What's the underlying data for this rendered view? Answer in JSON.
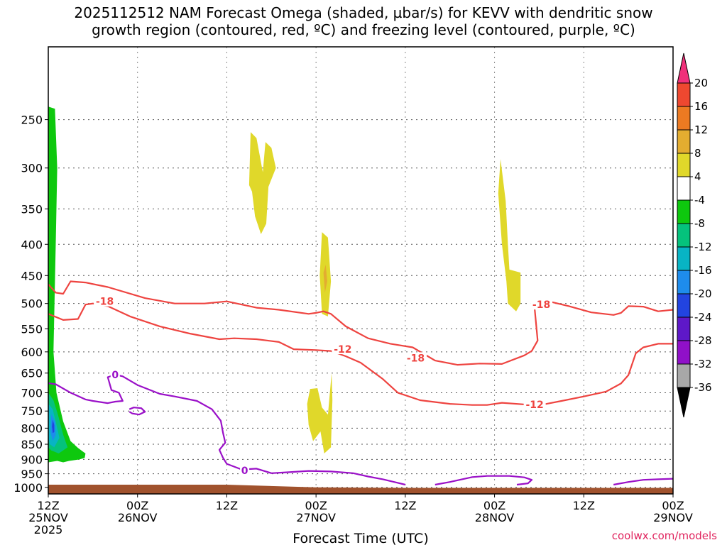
{
  "chart_data": {
    "type": "time-height contour",
    "title": "2025112512 NAM Forecast Omega (shaded, µbar/s) for KEVV with dendritic snow\ngrowth region (contoured, red, ºC) and freezing level (contoured, purple, ºC)",
    "xlabel": "Forecast Time (UTC)",
    "x_ticks": [
      {
        "hour": 0,
        "line1": "12Z",
        "line2": "25NOV",
        "line3": "2025"
      },
      {
        "hour": 12,
        "line1": "00Z",
        "line2": "26NOV",
        "line3": ""
      },
      {
        "hour": 24,
        "line1": "12Z",
        "line2": "",
        "line3": ""
      },
      {
        "hour": 36,
        "line1": "00Z",
        "line2": "27NOV",
        "line3": ""
      },
      {
        "hour": 48,
        "line1": "12Z",
        "line2": "",
        "line3": ""
      },
      {
        "hour": 60,
        "line1": "00Z",
        "line2": "28NOV",
        "line3": ""
      },
      {
        "hour": 72,
        "line1": "12Z",
        "line2": "",
        "line3": ""
      },
      {
        "hour": 84,
        "line1": "00Z",
        "line2": "29NOV",
        "line3": ""
      }
    ],
    "xlim": [
      0,
      84
    ],
    "y_ticks": [
      250,
      300,
      350,
      400,
      450,
      500,
      550,
      600,
      650,
      700,
      750,
      800,
      850,
      900,
      950,
      1000
    ],
    "ylim": [
      1025,
      190
    ],
    "y_scale": "log",
    "grid": true,
    "colorbar": {
      "labels": [
        "20",
        "16",
        "12",
        "8",
        "4",
        "-4",
        "-8",
        "-12",
        "-16",
        "-20",
        "-24",
        "-28",
        "-32",
        "-36"
      ],
      "colors": [
        "#f0307a",
        "#ee4830",
        "#ec7a22",
        "#e3ad30",
        "#e0d82a",
        "#ffffff",
        "#0ec80e",
        "#05c27c",
        "#08b4c4",
        "#1e8cec",
        "#2244e0",
        "#5e18c8",
        "#9010c8",
        "#a8a8a8",
        "#000000"
      ]
    },
    "shaded_regions": [
      {
        "level": "-8",
        "color": "#0ec80e",
        "points": [
          [
            0,
            238
          ],
          [
            0.9,
            240
          ],
          [
            1.2,
            300
          ],
          [
            1.0,
            400
          ],
          [
            0.7,
            600
          ],
          [
            1.1,
            700
          ],
          [
            2.0,
            780
          ],
          [
            3.0,
            840
          ],
          [
            4.0,
            862
          ],
          [
            5.0,
            880
          ],
          [
            4.9,
            895
          ],
          [
            4.2,
            900
          ],
          [
            2.8,
            905
          ],
          [
            2.0,
            910
          ],
          [
            1.2,
            905
          ],
          [
            0,
            910
          ]
        ]
      },
      {
        "level": "-12",
        "color": "#05c27c",
        "points": [
          [
            0,
            700
          ],
          [
            0.7,
            720
          ],
          [
            1.3,
            760
          ],
          [
            2.0,
            820
          ],
          [
            2.6,
            860
          ],
          [
            1.4,
            880
          ],
          [
            0.4,
            870
          ],
          [
            0,
            860
          ]
        ]
      },
      {
        "level": "-16",
        "color": "#08b4c4",
        "points": [
          [
            0,
            730
          ],
          [
            0.6,
            745
          ],
          [
            1.1,
            790
          ],
          [
            1.5,
            830
          ],
          [
            0.8,
            860
          ],
          [
            0.2,
            850
          ],
          [
            0,
            830
          ]
        ]
      },
      {
        "level": "-20",
        "color": "#1e8cec",
        "points": [
          [
            0.4,
            760
          ],
          [
            0.9,
            780
          ],
          [
            1.0,
            820
          ],
          [
            0.6,
            840
          ],
          [
            0.3,
            810
          ]
        ]
      },
      {
        "level": "-24",
        "color": "#2244e0",
        "points": [
          [
            0.6,
            775
          ],
          [
            0.8,
            790
          ],
          [
            0.8,
            812
          ],
          [
            0.6,
            815
          ],
          [
            0.5,
            795
          ]
        ]
      },
      {
        "level": "4",
        "color": "#e0d82a",
        "points": [
          [
            27.2,
            262
          ],
          [
            28.0,
            268
          ],
          [
            29.0,
            312
          ],
          [
            28.6,
            330
          ],
          [
            29.2,
            272
          ],
          [
            30.0,
            278
          ],
          [
            30.6,
            300
          ],
          [
            29.6,
            322
          ],
          [
            29.3,
            370
          ],
          [
            28.6,
            385
          ],
          [
            27.8,
            360
          ],
          [
            27.4,
            328
          ],
          [
            27.0,
            320
          ]
        ]
      },
      {
        "level": "4",
        "color": "#e0d82a",
        "points": [
          [
            36.8,
            382
          ],
          [
            37.6,
            390
          ],
          [
            38.0,
            460
          ],
          [
            37.6,
            525
          ],
          [
            36.8,
            520
          ],
          [
            36.5,
            450
          ]
        ]
      },
      {
        "level": "8",
        "color": "#e3ad30",
        "points": [
          [
            37.0,
            445
          ],
          [
            37.3,
            432
          ],
          [
            37.5,
            460
          ],
          [
            37.2,
            480
          ]
        ]
      },
      {
        "level": "4",
        "color": "#e0d82a",
        "points": [
          [
            35.2,
            690
          ],
          [
            36.2,
            688
          ],
          [
            36.8,
            740
          ],
          [
            37.6,
            760
          ],
          [
            38.1,
            650
          ],
          [
            38.2,
            720
          ],
          [
            38.0,
            860
          ],
          [
            37.1,
            880
          ],
          [
            36.6,
            810
          ],
          [
            35.6,
            840
          ],
          [
            35.0,
            790
          ],
          [
            34.8,
            730
          ]
        ]
      },
      {
        "level": "4",
        "color": "#e0d82a",
        "points": [
          [
            60.8,
            290
          ],
          [
            61.5,
            340
          ],
          [
            61.8,
            400
          ],
          [
            62.0,
            440
          ],
          [
            63.5,
            445
          ],
          [
            63.5,
            500
          ],
          [
            62.9,
            515
          ],
          [
            61.8,
            500
          ],
          [
            61.6,
            460
          ],
          [
            61.0,
            400
          ],
          [
            60.5,
            330
          ]
        ]
      }
    ],
    "contours": [
      {
        "kind": "dendritic",
        "label": "-18",
        "color": "#ee4440",
        "points": [
          [
            0,
            465
          ],
          [
            1,
            480
          ],
          [
            2,
            482
          ],
          [
            3,
            460
          ],
          [
            5,
            462
          ],
          [
            8,
            470
          ],
          [
            13,
            490
          ],
          [
            17,
            500
          ],
          [
            21,
            500
          ],
          [
            24,
            496
          ],
          [
            28,
            508
          ],
          [
            31,
            512
          ],
          [
            35,
            520
          ],
          [
            36,
            518
          ],
          [
            37,
            515
          ],
          [
            38,
            520
          ],
          [
            40,
            545
          ],
          [
            43,
            570
          ],
          [
            46,
            582
          ],
          [
            49,
            590
          ],
          [
            52,
            620
          ],
          [
            55,
            630
          ],
          [
            58,
            627
          ],
          [
            61,
            628
          ],
          [
            64,
            608
          ],
          [
            65,
            598
          ],
          [
            65.8,
            575
          ],
          [
            65.4,
            510
          ],
          [
            66,
            500
          ],
          [
            67,
            495
          ],
          [
            70,
            505
          ],
          [
            73,
            517
          ],
          [
            76,
            522
          ],
          [
            77,
            518
          ],
          [
            78,
            505
          ],
          [
            80,
            506
          ],
          [
            82,
            515
          ],
          [
            84,
            512
          ]
        ]
      },
      {
        "kind": "dendritic",
        "label": "-12",
        "color": "#ee4440",
        "points": [
          [
            0,
            520
          ],
          [
            2,
            532
          ],
          [
            4,
            530
          ],
          [
            5,
            502
          ],
          [
            6,
            500
          ],
          [
            8,
            505
          ],
          [
            11,
            525
          ],
          [
            15,
            545
          ],
          [
            19,
            560
          ],
          [
            23,
            572
          ],
          [
            25,
            570
          ],
          [
            28,
            572
          ],
          [
            31,
            578
          ],
          [
            33,
            594
          ],
          [
            36,
            596
          ],
          [
            38,
            598
          ],
          [
            40,
            610
          ],
          [
            42,
            625
          ],
          [
            45,
            665
          ],
          [
            47,
            700
          ],
          [
            50,
            720
          ],
          [
            54,
            730
          ],
          [
            57,
            733
          ],
          [
            59,
            733
          ],
          [
            61,
            727
          ],
          [
            65,
            733
          ],
          [
            67,
            730
          ],
          [
            69,
            722
          ],
          [
            72,
            710
          ],
          [
            75,
            697
          ],
          [
            77,
            676
          ],
          [
            78,
            655
          ],
          [
            79,
            603
          ],
          [
            80,
            590
          ],
          [
            82,
            582
          ],
          [
            84,
            582
          ]
        ]
      },
      {
        "kind": "freezing",
        "label": "0",
        "color": "#9a10c8",
        "points": [
          [
            0,
            675
          ],
          [
            1,
            678
          ],
          [
            3,
            700
          ],
          [
            5,
            718
          ],
          [
            6,
            722
          ],
          [
            8,
            728
          ],
          [
            9,
            724
          ],
          [
            10,
            722
          ],
          [
            9.5,
            700
          ],
          [
            8.5,
            693
          ],
          [
            8.0,
            660
          ],
          [
            9.0,
            654
          ],
          [
            10,
            658
          ],
          [
            12,
            680
          ],
          [
            15,
            703
          ],
          [
            17,
            710
          ],
          [
            20,
            722
          ],
          [
            22,
            745
          ],
          [
            23.2,
            778
          ],
          [
            23.5,
            815
          ],
          [
            23.8,
            845
          ],
          [
            23.0,
            868
          ],
          [
            23.5,
            895
          ],
          [
            24,
            915
          ],
          [
            26,
            935
          ],
          [
            28,
            932
          ],
          [
            30,
            948
          ],
          [
            32,
            945
          ],
          [
            35,
            940
          ],
          [
            38,
            942
          ],
          [
            41,
            948
          ],
          [
            43,
            960
          ],
          [
            45,
            970
          ],
          [
            47,
            983
          ],
          [
            48,
            990
          ]
        ]
      },
      {
        "kind": "freezing",
        "label": "",
        "color": "#9a10c8",
        "points": [
          [
            10.9,
            745
          ],
          [
            11.5,
            740
          ],
          [
            12.5,
            742
          ],
          [
            13.0,
            752
          ],
          [
            12.2,
            760
          ],
          [
            11.3,
            757
          ],
          [
            10.9,
            752
          ]
        ]
      },
      {
        "kind": "freezing",
        "label": "",
        "color": "#9a10c8",
        "points": [
          [
            52,
            990
          ],
          [
            54,
            980
          ],
          [
            57,
            962
          ],
          [
            59,
            958
          ],
          [
            62,
            958
          ],
          [
            64,
            963
          ],
          [
            65,
            972
          ],
          [
            64.5,
            985
          ],
          [
            63,
            990
          ]
        ]
      },
      {
        "kind": "freezing",
        "label": "",
        "color": "#9a10c8",
        "points": [
          [
            76,
            990
          ],
          [
            78,
            980
          ],
          [
            80,
            972
          ],
          [
            82,
            970
          ],
          [
            84,
            968
          ]
        ]
      }
    ],
    "contour_labels": [
      {
        "text": "-18",
        "color": "#ee4440",
        "x": 7.6,
        "y": 496
      },
      {
        "text": "-12",
        "color": "#ee4440",
        "x": 39.6,
        "y": 594
      },
      {
        "text": "-18",
        "color": "#ee4440",
        "x": 49.4,
        "y": 614
      },
      {
        "text": "-12",
        "color": "#ee4440",
        "x": 65.4,
        "y": 732
      },
      {
        "text": "-18",
        "color": "#ee4440",
        "x": 66.3,
        "y": 502
      },
      {
        "text": "0",
        "color": "#9a10c8",
        "x": 9.0,
        "y": 654
      },
      {
        "text": "0",
        "color": "#9a10c8",
        "x": 26.4,
        "y": 938
      }
    ],
    "ground": {
      "color": "#a0522d",
      "top": [
        [
          0,
          990
        ],
        [
          24,
          990
        ],
        [
          36,
          1000
        ],
        [
          48,
          1002
        ],
        [
          84,
          1002
        ]
      ]
    }
  },
  "footer": "coolwx.com/models"
}
